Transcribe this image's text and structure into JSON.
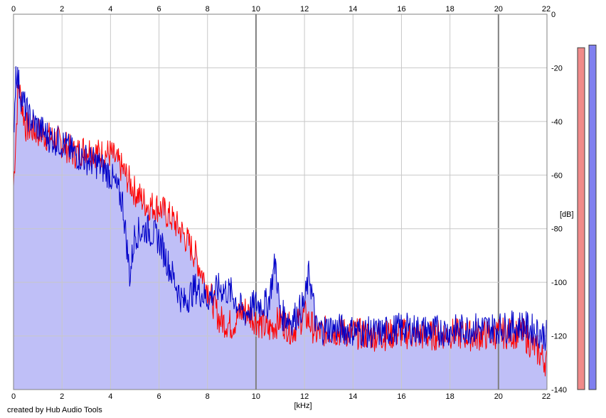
{
  "chart_data": {
    "type": "area",
    "title": "",
    "xlabel": "[kHz]",
    "ylabel": "[dB]",
    "xlim": [
      0,
      22
    ],
    "ylim": [
      -140,
      0
    ],
    "x_ticks": [
      "0",
      "2",
      "4",
      "6",
      "8",
      "10",
      "12",
      "14",
      "16",
      "18",
      "20",
      "22"
    ],
    "y_ticks": [
      "0",
      "-20",
      "-40",
      "-60",
      "-80",
      "-100",
      "-120",
      "-140"
    ],
    "grid": true,
    "colors": {
      "fill": "#bfbff7",
      "red_series": "#ff0000",
      "blue_series": "#0000c8",
      "grid_minor": "#c8c8c8",
      "grid_major": "#808080",
      "meter_red": "#f08a8a",
      "meter_blue": "#8080f0"
    },
    "series": [
      {
        "color": "red",
        "x": [
          0,
          0.2,
          0.5,
          1,
          1.5,
          2,
          2.5,
          3,
          3.5,
          4,
          4.5,
          5,
          5.5,
          6,
          6.5,
          7,
          7.5,
          8,
          8.5,
          9,
          9.5,
          10,
          10.5,
          11,
          11.5,
          12,
          12.5,
          13,
          14,
          15,
          16,
          17,
          18,
          19,
          20,
          21,
          22
        ],
        "y": [
          -64,
          -26,
          -42,
          -44,
          -46,
          -48,
          -52,
          -50,
          -52,
          -52,
          -58,
          -66,
          -71,
          -72,
          -76,
          -82,
          -90,
          -102,
          -114,
          -116,
          -110,
          -114,
          -118,
          -114,
          -118,
          -112,
          -119,
          -118,
          -119,
          -120,
          -119,
          -120,
          -119,
          -120,
          -119,
          -119,
          -130
        ]
      },
      {
        "color": "blue",
        "x": [
          0,
          0.1,
          0.3,
          0.6,
          1,
          1.5,
          2,
          2.5,
          3,
          3.5,
          4,
          4.5,
          4.8,
          5,
          5.5,
          6,
          6.5,
          7,
          7.5,
          8,
          8.5,
          9,
          9.5,
          10,
          10.5,
          10.8,
          11,
          11.5,
          12,
          12.2,
          12.5,
          13,
          14,
          15,
          16,
          17,
          18,
          19,
          20,
          21,
          22
        ],
        "y": [
          -45,
          -20,
          -30,
          -38,
          -42,
          -46,
          -48,
          -52,
          -54,
          -56,
          -60,
          -70,
          -98,
          -82,
          -80,
          -84,
          -96,
          -108,
          -102,
          -106,
          -102,
          -104,
          -112,
          -108,
          -108,
          -92,
          -112,
          -114,
          -108,
          -96,
          -118,
          -117,
          -118,
          -119,
          -117,
          -118,
          -118,
          -117,
          -117,
          -116,
          -120
        ]
      }
    ],
    "meters": [
      {
        "color": "red",
        "level_db": -12.5
      },
      {
        "color": "blue",
        "level_db": -11.5
      }
    ],
    "credit": "created by Hub Audio Tools"
  }
}
